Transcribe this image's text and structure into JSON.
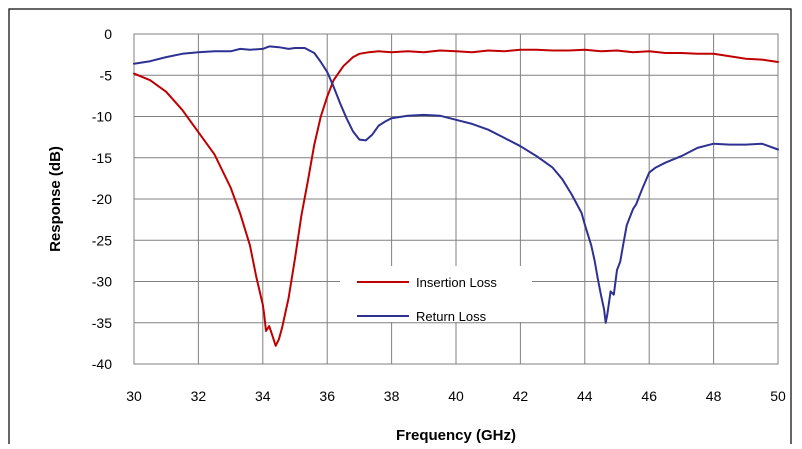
{
  "chart_data": {
    "type": "line",
    "title": "",
    "xlabel": "Frequency (GHz)",
    "ylabel": "Response (dB)",
    "xlim": [
      30,
      50
    ],
    "ylim": [
      -40,
      0
    ],
    "x_ticks": [
      30,
      32,
      34,
      36,
      38,
      40,
      42,
      44,
      46,
      48,
      50
    ],
    "y_ticks": [
      0,
      -5,
      -10,
      -15,
      -20,
      -25,
      -30,
      -35,
      -40
    ],
    "x_tick_labels": [
      "30",
      "32",
      "34",
      "36",
      "38",
      "40",
      "42",
      "44",
      "46",
      "48",
      "50"
    ],
    "y_tick_labels": [
      "0",
      "-5",
      "-10",
      "-15",
      "-20",
      "-25",
      "-30",
      "-35",
      "-40"
    ],
    "grid": true,
    "legend_position": "center-right",
    "series": [
      {
        "name": "Insertion Loss",
        "color": "#c00000",
        "points": [
          [
            30.0,
            -4.8
          ],
          [
            30.5,
            -5.6
          ],
          [
            31.0,
            -7.0
          ],
          [
            31.5,
            -9.2
          ],
          [
            32.0,
            -11.9
          ],
          [
            32.5,
            -14.6
          ],
          [
            33.0,
            -18.6
          ],
          [
            33.3,
            -21.8
          ],
          [
            33.6,
            -25.6
          ],
          [
            33.8,
            -29.5
          ],
          [
            34.0,
            -32.8
          ],
          [
            34.05,
            -34.2
          ],
          [
            34.1,
            -36.0
          ],
          [
            34.2,
            -35.4
          ],
          [
            34.3,
            -36.6
          ],
          [
            34.4,
            -37.8
          ],
          [
            34.5,
            -37.0
          ],
          [
            34.6,
            -35.6
          ],
          [
            34.8,
            -32.0
          ],
          [
            35.0,
            -27.2
          ],
          [
            35.2,
            -22.0
          ],
          [
            35.4,
            -17.8
          ],
          [
            35.6,
            -13.4
          ],
          [
            35.8,
            -10.0
          ],
          [
            36.0,
            -7.6
          ],
          [
            36.2,
            -5.6
          ],
          [
            36.5,
            -3.9
          ],
          [
            36.8,
            -2.8
          ],
          [
            37.0,
            -2.4
          ],
          [
            37.3,
            -2.2
          ],
          [
            37.6,
            -2.1
          ],
          [
            38.0,
            -2.2
          ],
          [
            38.5,
            -2.1
          ],
          [
            39.0,
            -2.2
          ],
          [
            39.5,
            -2.0
          ],
          [
            40.0,
            -2.1
          ],
          [
            40.5,
            -2.2
          ],
          [
            41.0,
            -2.0
          ],
          [
            41.5,
            -2.1
          ],
          [
            42.0,
            -1.9
          ],
          [
            42.5,
            -1.9
          ],
          [
            43.0,
            -2.0
          ],
          [
            43.5,
            -2.0
          ],
          [
            44.0,
            -1.9
          ],
          [
            44.5,
            -2.1
          ],
          [
            45.0,
            -2.0
          ],
          [
            45.5,
            -2.2
          ],
          [
            46.0,
            -2.1
          ],
          [
            46.5,
            -2.3
          ],
          [
            47.0,
            -2.3
          ],
          [
            47.5,
            -2.4
          ],
          [
            48.0,
            -2.4
          ],
          [
            48.5,
            -2.7
          ],
          [
            49.0,
            -3.0
          ],
          [
            49.5,
            -3.1
          ],
          [
            50.0,
            -3.4
          ]
        ]
      },
      {
        "name": "Return Loss",
        "color": "#2e3192",
        "points": [
          [
            30.0,
            -3.6
          ],
          [
            30.5,
            -3.3
          ],
          [
            31.0,
            -2.8
          ],
          [
            31.5,
            -2.4
          ],
          [
            32.0,
            -2.2
          ],
          [
            32.5,
            -2.1
          ],
          [
            33.0,
            -2.1
          ],
          [
            33.3,
            -1.8
          ],
          [
            33.6,
            -1.9
          ],
          [
            34.0,
            -1.8
          ],
          [
            34.2,
            -1.5
          ],
          [
            34.5,
            -1.6
          ],
          [
            34.8,
            -1.8
          ],
          [
            35.0,
            -1.7
          ],
          [
            35.3,
            -1.7
          ],
          [
            35.6,
            -2.3
          ],
          [
            35.8,
            -3.4
          ],
          [
            36.0,
            -4.6
          ],
          [
            36.2,
            -6.4
          ],
          [
            36.4,
            -8.4
          ],
          [
            36.6,
            -10.2
          ],
          [
            36.8,
            -11.8
          ],
          [
            37.0,
            -12.8
          ],
          [
            37.2,
            -12.9
          ],
          [
            37.4,
            -12.2
          ],
          [
            37.6,
            -11.1
          ],
          [
            37.8,
            -10.6
          ],
          [
            38.0,
            -10.2
          ],
          [
            38.5,
            -9.9
          ],
          [
            39.0,
            -9.8
          ],
          [
            39.5,
            -9.9
          ],
          [
            40.0,
            -10.4
          ],
          [
            40.5,
            -10.9
          ],
          [
            41.0,
            -11.6
          ],
          [
            41.5,
            -12.6
          ],
          [
            42.0,
            -13.6
          ],
          [
            42.5,
            -14.8
          ],
          [
            43.0,
            -16.2
          ],
          [
            43.3,
            -17.6
          ],
          [
            43.6,
            -19.5
          ],
          [
            43.9,
            -21.7
          ],
          [
            44.0,
            -23.1
          ],
          [
            44.2,
            -25.6
          ],
          [
            44.3,
            -27.4
          ],
          [
            44.4,
            -29.6
          ],
          [
            44.5,
            -31.6
          ],
          [
            44.6,
            -33.4
          ],
          [
            44.65,
            -35.0
          ],
          [
            44.7,
            -34.0
          ],
          [
            44.8,
            -31.2
          ],
          [
            44.9,
            -31.6
          ],
          [
            45.0,
            -28.6
          ],
          [
            45.1,
            -27.6
          ],
          [
            45.2,
            -25.4
          ],
          [
            45.3,
            -23.2
          ],
          [
            45.5,
            -21.2
          ],
          [
            45.6,
            -20.6
          ],
          [
            45.7,
            -19.6
          ],
          [
            45.8,
            -18.6
          ],
          [
            46.0,
            -16.8
          ],
          [
            46.2,
            -16.2
          ],
          [
            46.5,
            -15.6
          ],
          [
            47.0,
            -14.8
          ],
          [
            47.5,
            -13.8
          ],
          [
            48.0,
            -13.3
          ],
          [
            48.5,
            -13.4
          ],
          [
            49.0,
            -13.4
          ],
          [
            49.5,
            -13.3
          ],
          [
            50.0,
            -14.0
          ]
        ]
      }
    ]
  }
}
